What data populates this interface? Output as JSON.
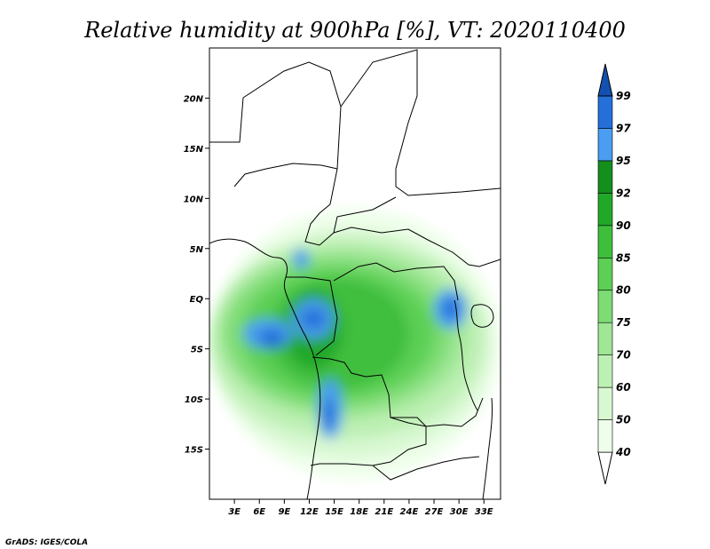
{
  "title": "Relative humidity at 900hPa [%], VT: 2020110400",
  "credit": "GrADS: IGES/COLA",
  "map": {
    "lon_range": [
      0,
      35
    ],
    "lat_range": [
      -20,
      25
    ],
    "lat_ticks": [
      {
        "value": 20,
        "label": "20N"
      },
      {
        "value": 15,
        "label": "15N"
      },
      {
        "value": 10,
        "label": "10N"
      },
      {
        "value": 5,
        "label": "5N"
      },
      {
        "value": 0,
        "label": "EQ"
      },
      {
        "value": -5,
        "label": "5S"
      },
      {
        "value": -10,
        "label": "10S"
      },
      {
        "value": -15,
        "label": "15S"
      }
    ],
    "lon_ticks": [
      {
        "value": 3,
        "label": "3E"
      },
      {
        "value": 6,
        "label": "6E"
      },
      {
        "value": 9,
        "label": "9E"
      },
      {
        "value": 12,
        "label": "12E"
      },
      {
        "value": 15,
        "label": "15E"
      },
      {
        "value": 18,
        "label": "18E"
      },
      {
        "value": 21,
        "label": "21E"
      },
      {
        "value": 24,
        "label": "24E"
      },
      {
        "value": 27,
        "label": "27E"
      },
      {
        "value": 30,
        "label": "30E"
      },
      {
        "value": 33,
        "label": "33E"
      }
    ]
  },
  "colorbar": {
    "levels": [
      "40",
      "50",
      "60",
      "70",
      "75",
      "80",
      "85",
      "90",
      "92",
      "95",
      "97",
      "99"
    ],
    "colors": [
      "#ffffff",
      "#eefeea",
      "#d8f8d2",
      "#bdf0b4",
      "#9fe695",
      "#7ddc73",
      "#5ccf54",
      "#3fbe3c",
      "#22a829",
      "#148e1c",
      "#4a9df0",
      "#2470d8",
      "#1450b0"
    ]
  },
  "humid_regions": [
    {
      "level": 1,
      "lon_min": 0,
      "lon_max": 35,
      "lat_min": -18,
      "lat_max": 9
    },
    {
      "level": 2,
      "lon_min": 0,
      "lon_max": 34,
      "lat_min": -16,
      "lat_max": 7
    },
    {
      "level": 3,
      "lon_min": 0,
      "lon_max": 33,
      "lat_min": -14,
      "lat_max": 6
    },
    {
      "level": 4,
      "lon_min": 1,
      "lon_max": 31,
      "lat_min": -12,
      "lat_max": 5
    },
    {
      "level": 5,
      "lon_min": 2,
      "lon_max": 29,
      "lat_min": -11,
      "lat_max": 4
    },
    {
      "level": 6,
      "lon_min": 4,
      "lon_max": 27,
      "lat_min": -10,
      "lat_max": 3
    },
    {
      "level": 7,
      "lon_min": 7,
      "lon_max": 24,
      "lat_min": -9,
      "lat_max": 2
    },
    {
      "level": 8,
      "lon_min": 9,
      "lon_max": 16,
      "lat_min": -7,
      "lat_max": 1
    },
    {
      "level": 10,
      "lon_min": 4,
      "lon_max": 10,
      "lat_min": -5,
      "lat_max": -2
    },
    {
      "level": 11,
      "lon_min": 6,
      "lon_max": 9,
      "lat_min": -5,
      "lat_max": -3
    },
    {
      "level": 10,
      "lon_min": 10,
      "lon_max": 15,
      "lat_min": -4,
      "lat_max": 0
    },
    {
      "level": 11,
      "lon_min": 11,
      "lon_max": 14,
      "lat_min": -3,
      "lat_max": -1
    },
    {
      "level": 10,
      "lon_min": 13,
      "lon_max": 16,
      "lat_min": -14,
      "lat_max": -8
    },
    {
      "level": 11,
      "lon_min": 13.5,
      "lon_max": 15,
      "lat_min": -13,
      "lat_max": -10
    },
    {
      "level": 10,
      "lon_min": 10,
      "lon_max": 12,
      "lat_min": 3,
      "lat_max": 5
    },
    {
      "level": 10,
      "lon_min": 27,
      "lon_max": 31,
      "lat_min": -3,
      "lat_max": 1
    },
    {
      "level": 11,
      "lon_min": 28,
      "lon_max": 30,
      "lat_min": -2,
      "lat_max": 0
    }
  ]
}
